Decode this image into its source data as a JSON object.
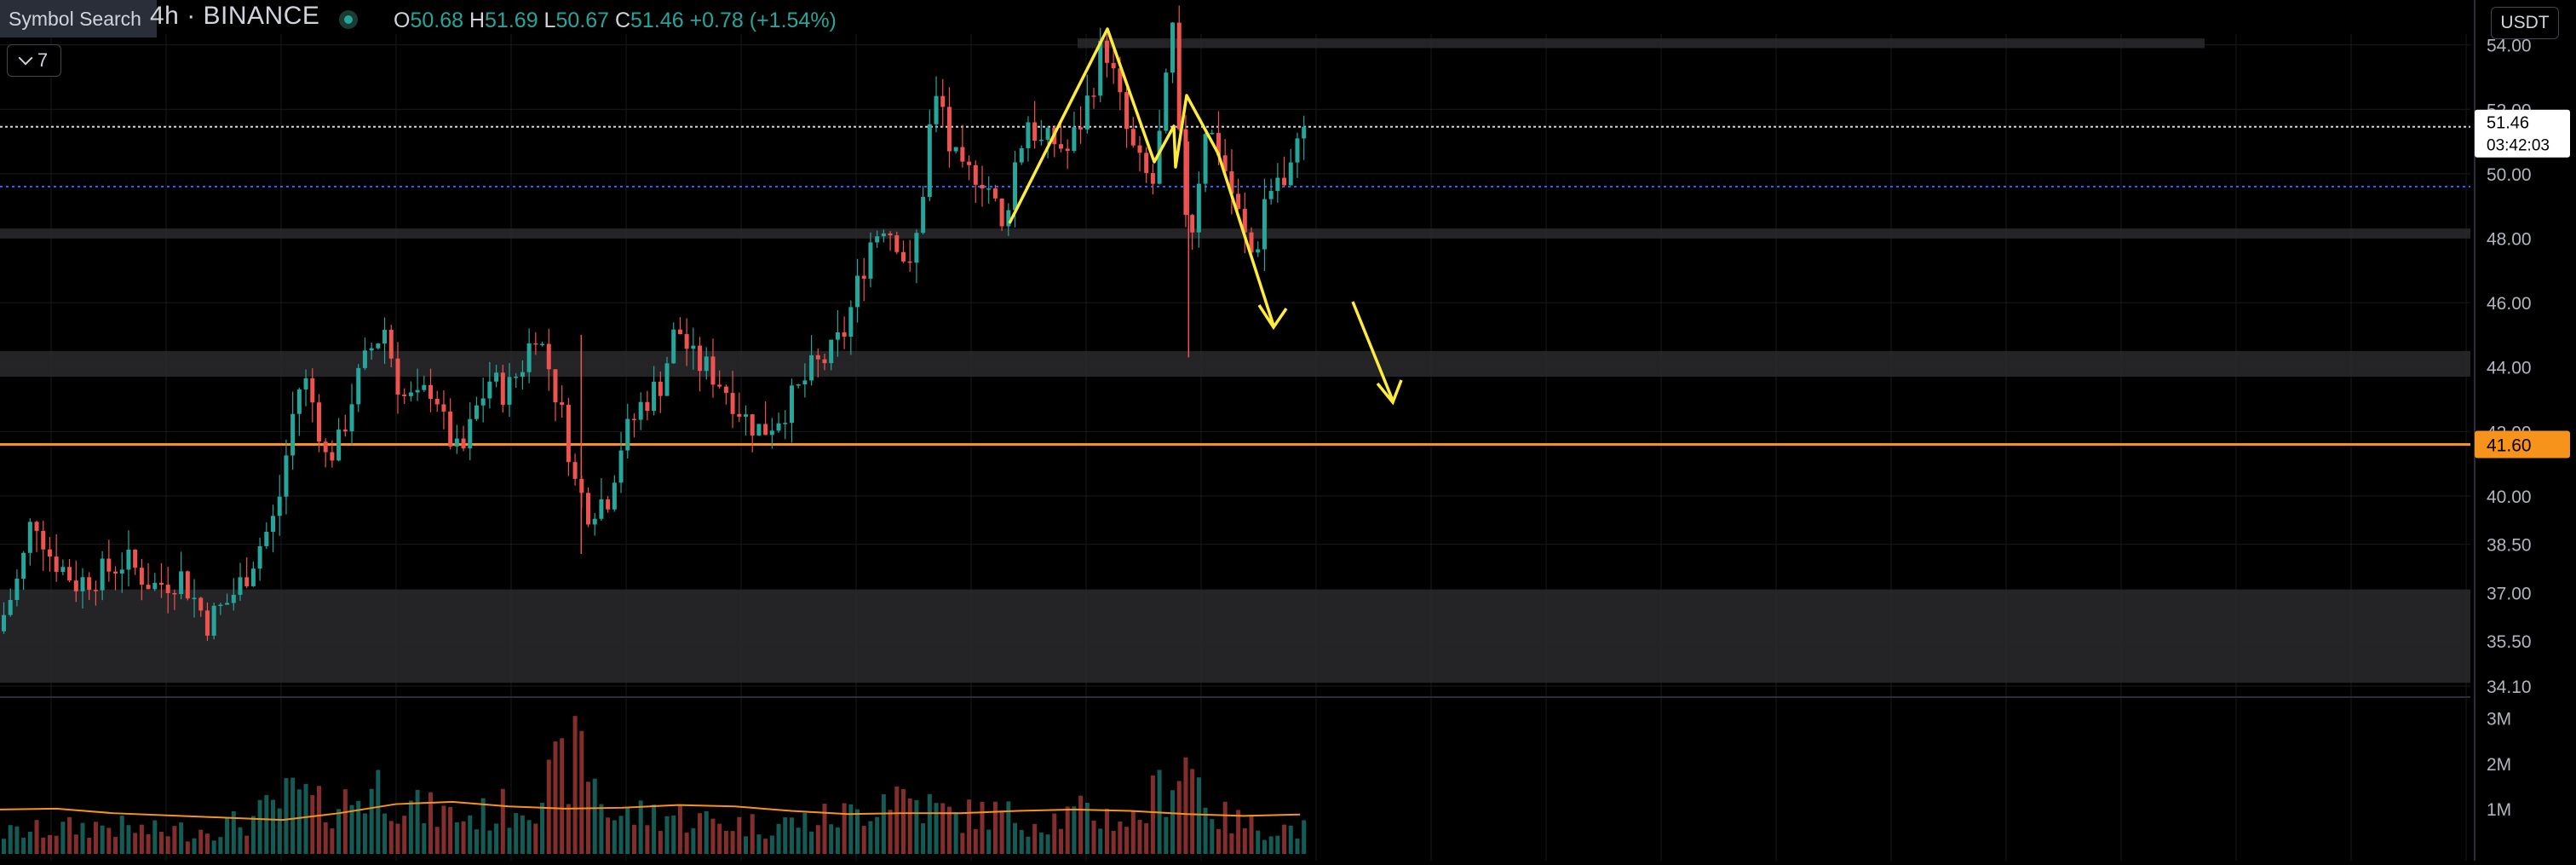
{
  "header": {
    "symbol_search_label": "Symbol Search",
    "interval": "4h",
    "exchange": "BINANCE",
    "title_text": "4h · BINANCE",
    "ohlc": {
      "o_label": "O",
      "o": "50.68",
      "h_label": "H",
      "h": "51.69",
      "l_label": "L",
      "l": "50.67",
      "c_label": "C",
      "c": "51.46",
      "change": "+0.78 (+1.54%)"
    },
    "indicators_collapsed_count": "7",
    "currency": "USDT"
  },
  "colors": {
    "background": "#000000",
    "up": "#26a69a",
    "down": "#ef5350",
    "drawing": "#ffeb3b",
    "level": "#f7931a",
    "zone": "#2a2a2e",
    "grid": "#1a1a1a",
    "axis_text": "#b2b5be"
  },
  "price_axis": {
    "ticks": [
      "54.00",
      "52.00",
      "50.00",
      "48.00",
      "46.00",
      "44.00",
      "42.00",
      "40.00",
      "38.50",
      "37.00",
      "35.50",
      "34.10"
    ],
    "tick_values": [
      54.0,
      52.0,
      50.0,
      48.0,
      46.0,
      44.0,
      42.0,
      40.0,
      38.5,
      37.0,
      35.5,
      34.1
    ],
    "last_price": "51.46",
    "countdown": "03:42:03",
    "level_label": "41.60"
  },
  "volume_axis": {
    "ticks": [
      "3M",
      "2M",
      "1M"
    ],
    "tick_values": [
      3000000,
      2000000,
      1000000
    ]
  },
  "chart_data": {
    "type": "candlestick",
    "series_meta": {
      "interval": "4h",
      "exchange": "BINANCE",
      "quote": "USDT"
    },
    "price_range": [
      34.1,
      54.6
    ],
    "last": {
      "open": 50.68,
      "high": 51.69,
      "low": 50.67,
      "close": 51.46
    },
    "levels": [
      41.6,
      49.6
    ],
    "zones": [
      [
        53.9,
        54.2
      ],
      [
        48.0,
        48.3
      ],
      [
        43.7,
        44.5
      ],
      [
        34.2,
        37.1
      ]
    ],
    "anchors": [
      [
        0,
        35.8
      ],
      [
        14,
        37.6
      ],
      [
        22,
        39.5
      ],
      [
        32,
        38.2
      ],
      [
        48,
        37.3
      ],
      [
        64,
        37.6
      ],
      [
        78,
        38.0
      ],
      [
        95,
        37.2
      ],
      [
        112,
        37.5
      ],
      [
        128,
        36.1
      ],
      [
        140,
        36.7
      ],
      [
        150,
        37.4
      ],
      [
        160,
        38.5
      ],
      [
        170,
        39.4
      ],
      [
        180,
        42.5
      ],
      [
        186,
        43.8
      ],
      [
        194,
        42.6
      ],
      [
        200,
        41.2
      ],
      [
        208,
        41.6
      ],
      [
        218,
        43.4
      ],
      [
        228,
        44.6
      ],
      [
        236,
        45.2
      ],
      [
        246,
        43.1
      ],
      [
        256,
        42.9
      ],
      [
        266,
        43.5
      ],
      [
        272,
        42.2
      ],
      [
        282,
        41.1
      ],
      [
        292,
        42.7
      ],
      [
        300,
        43.6
      ],
      [
        310,
        43.2
      ],
      [
        320,
        44.1
      ],
      [
        328,
        45.2
      ],
      [
        336,
        44.0
      ],
      [
        346,
        42.1
      ],
      [
        352,
        40.4
      ],
      [
        360,
        39.6
      ],
      [
        372,
        40.0
      ],
      [
        380,
        41.6
      ],
      [
        392,
        42.8
      ],
      [
        404,
        43.5
      ],
      [
        414,
        45.3
      ],
      [
        424,
        44.2
      ],
      [
        434,
        43.9
      ],
      [
        446,
        43.2
      ],
      [
        456,
        42.4
      ],
      [
        466,
        42.0
      ],
      [
        476,
        42.5
      ],
      [
        486,
        43.1
      ],
      [
        496,
        43.9
      ],
      [
        508,
        44.4
      ],
      [
        516,
        45.1
      ],
      [
        524,
        46.5
      ],
      [
        532,
        47.9
      ],
      [
        540,
        48.5
      ],
      [
        548,
        48.0
      ],
      [
        556,
        46.9
      ],
      [
        562,
        48.6
      ],
      [
        568,
        51.4
      ],
      [
        574,
        52.6
      ],
      [
        580,
        50.8
      ],
      [
        588,
        49.9
      ],
      [
        598,
        50.1
      ],
      [
        606,
        49.4
      ],
      [
        612,
        48.2
      ],
      [
        620,
        50.3
      ],
      [
        628,
        51.7
      ],
      [
        636,
        50.9
      ],
      [
        644,
        51.0
      ],
      [
        652,
        50.7
      ],
      [
        660,
        51.6
      ],
      [
        668,
        52.9
      ],
      [
        674,
        54.2
      ],
      [
        682,
        52.6
      ],
      [
        690,
        50.9
      ],
      [
        698,
        50.0
      ],
      [
        704,
        49.7
      ],
      [
        710,
        51.8
      ],
      [
        716,
        54.4
      ],
      [
        722,
        49.2
      ],
      [
        728,
        48.4
      ],
      [
        736,
        51.5
      ],
      [
        744,
        50.8
      ],
      [
        752,
        49.4
      ],
      [
        760,
        48.0
      ],
      [
        766,
        47.3
      ],
      [
        772,
        49.2
      ],
      [
        780,
        49.9
      ],
      [
        786,
        49.3
      ],
      [
        792,
        51.46
      ]
    ],
    "volume_anchors": [
      [
        0,
        0.5
      ],
      [
        30,
        0.6
      ],
      [
        60,
        0.7
      ],
      [
        90,
        0.55
      ],
      [
        120,
        0.6
      ],
      [
        150,
        0.8
      ],
      [
        180,
        1.5
      ],
      [
        190,
        1.1
      ],
      [
        210,
        1.3
      ],
      [
        230,
        1.7
      ],
      [
        250,
        1.1
      ],
      [
        280,
        0.9
      ],
      [
        300,
        1.0
      ],
      [
        330,
        1.6
      ],
      [
        352,
        2.5
      ],
      [
        370,
        0.9
      ],
      [
        400,
        1.0
      ],
      [
        430,
        0.8
      ],
      [
        460,
        0.7
      ],
      [
        490,
        0.8
      ],
      [
        520,
        1.0
      ],
      [
        540,
        1.6
      ],
      [
        560,
        1.2
      ],
      [
        580,
        0.9
      ],
      [
        600,
        1.0
      ],
      [
        630,
        0.8
      ],
      [
        660,
        1.0
      ],
      [
        690,
        0.8
      ],
      [
        720,
        2.4
      ],
      [
        740,
        0.9
      ],
      [
        760,
        0.7
      ],
      [
        792,
        0.6
      ]
    ],
    "volume_ma": [
      0.98,
      1.0,
      0.9,
      0.85,
      0.8,
      0.75,
      0.9,
      1.1,
      1.15,
      1.05,
      1.0,
      1.02,
      1.08,
      1.05,
      0.95,
      0.88,
      0.9,
      0.9,
      0.95,
      0.98,
      0.95,
      0.88,
      0.84,
      0.87
    ]
  }
}
